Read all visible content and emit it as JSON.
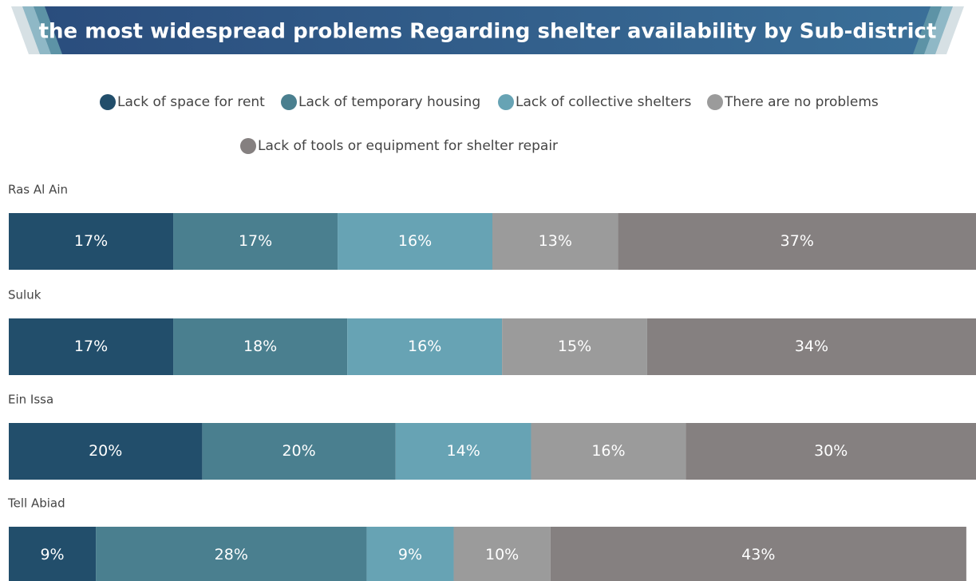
{
  "chart_data": {
    "type": "stacked-bar-horizontal",
    "title": "the most widespread problems Regarding shelter availability by Sub-district",
    "categories": [
      "Ras Al Ain",
      "Suluk",
      "Ein Issa",
      "Tell Abiad"
    ],
    "xlim": [
      0,
      100
    ],
    "series": [
      {
        "name": "Lack of space for rent",
        "color": "#224e6b",
        "values": [
          17,
          17,
          20,
          9
        ],
        "value_labels": [
          "17%",
          "17%",
          "20%",
          "9%"
        ]
      },
      {
        "name": "Lack of temporary housing",
        "color": "#4a7f8f",
        "values": [
          17,
          18,
          20,
          28
        ],
        "value_labels": [
          "17%",
          "18%",
          "20%",
          "28%"
        ]
      },
      {
        "name": "Lack of collective shelters",
        "color": "#67a3b4",
        "values": [
          16,
          16,
          14,
          9
        ],
        "value_labels": [
          "16%",
          "16%",
          "14%",
          "9%"
        ]
      },
      {
        "name": "There are no problems",
        "color": "#9b9b9b",
        "values": [
          13,
          15,
          16,
          10
        ],
        "value_labels": [
          "13%",
          "15%",
          "16%",
          "10%"
        ]
      },
      {
        "name": "Lack of tools or equipment for shelter repair",
        "color": "#858080",
        "values": [
          37,
          34,
          30,
          43
        ],
        "value_labels": [
          "37%",
          "34%",
          "30%",
          "43%"
        ]
      }
    ]
  }
}
